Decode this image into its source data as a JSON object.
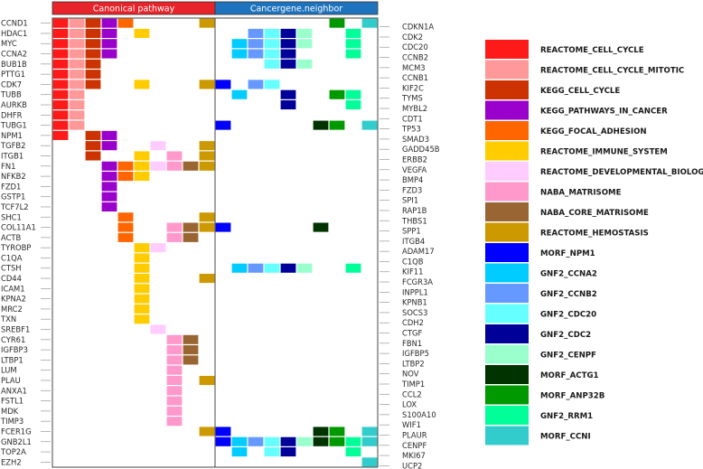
{
  "chart_data": {
    "type": "heatmap",
    "headers": [
      "Canonical pathway",
      "Cancergene.neighbor"
    ],
    "header_colors": [
      "#E8232A",
      "#1E73BE"
    ],
    "left_genes": [
      "CCND1",
      "HDAC1",
      "MYC",
      "CCNA2",
      "BUB1B",
      "PTTG1",
      "CDK7",
      "TUBB",
      "AURKB",
      "DHFR",
      "TUBG1",
      "NPM1",
      "TGFB2",
      "ITGB1",
      "FN1",
      "NFKB2",
      "FZD1",
      "GSTP1",
      "TCF7L2",
      "SHC1",
      "COL11A1",
      "ACTB",
      "TYROBP",
      "C1QA",
      "CTSH",
      "CD44",
      "ICAM1",
      "KPNA2",
      "MRC2",
      "TXN",
      "SREBF1",
      "CYR61",
      "IGFBP3",
      "LTBP1",
      "LUM",
      "PLAU",
      "ANXA1",
      "FSTL1",
      "MDK",
      "TIMP3",
      "FCER1G",
      "GNB2L1",
      "TOP2A",
      "EZH2"
    ],
    "right_genes": [
      "CDKN1A",
      "CDK2",
      "CDC20",
      "CCNB2",
      "MCM3",
      "CCNB1",
      "KIF2C",
      "TYMS",
      "MYBL2",
      "CDT1",
      "TP53",
      "SMAD3",
      "GADD45B",
      "ERBB2",
      "VEGFA",
      "BMP4",
      "FZD3",
      "SPI1",
      "RAP1B",
      "THBS1",
      "SPP1",
      "ITGB4",
      "ADAM17",
      "C1QB",
      "KIF11",
      "FCGR3A",
      "INPPL1",
      "KPNB1",
      "SOCS3",
      "CDH2",
      "CTGF",
      "FBN1",
      "IGFBP5",
      "LTBP2",
      "NOV",
      "TIMP1",
      "CCL2",
      "LOX",
      "S100A10",
      "WIF1",
      "PLAUR",
      "CENPF",
      "MKI67",
      "UCP2"
    ],
    "sets": [
      {
        "name": "REACTOME_CELL_CYCLE",
        "color": "#FF1A1A"
      },
      {
        "name": "REACTOME_CELL_CYCLE_MITOTIC",
        "color": "#FF9999"
      },
      {
        "name": "KEGG_CELL_CYCLE",
        "color": "#CC3300"
      },
      {
        "name": "KEGG_PATHWAYS_IN_CANCER",
        "color": "#9900CC"
      },
      {
        "name": "KEGG_FOCAL_ADHESION",
        "color": "#FF6600"
      },
      {
        "name": "REACTOME_IMMUNE_SYSTEM",
        "color": "#FFCC00"
      },
      {
        "name": "REACTOME_DEVELOPMENTAL_BIOLOGY",
        "color": "#FFCCFF"
      },
      {
        "name": "NABA_MATRISOME",
        "color": "#FF99CC"
      },
      {
        "name": "NABA_CORE_MATRISOME",
        "color": "#996633"
      },
      {
        "name": "REACTOME_HEMOSTASIS",
        "color": "#CC9900"
      },
      {
        "name": "MORF_NPM1",
        "color": "#0000FF"
      },
      {
        "name": "GNF2_CCNA2",
        "color": "#00CCFF"
      },
      {
        "name": "GNF2_CCNB2",
        "color": "#6699FF"
      },
      {
        "name": "GNF2_CDC20",
        "color": "#66FFFF"
      },
      {
        "name": "GNF2_CDC2",
        "color": "#000099"
      },
      {
        "name": "GNF2_CENPF",
        "color": "#99FFCC"
      },
      {
        "name": "MORF_ACTG1",
        "color": "#003300"
      },
      {
        "name": "MORF_ANP32B",
        "color": "#009900"
      },
      {
        "name": "GNF2_RRM1",
        "color": "#00FF99"
      },
      {
        "name": "MORF_CCNI",
        "color": "#33CCCC"
      }
    ],
    "cells": [
      [
        0,
        0
      ],
      [
        0,
        1
      ],
      [
        0,
        2
      ],
      [
        0,
        3
      ],
      [
        0,
        4
      ],
      [
        0,
        9
      ],
      [
        1,
        0
      ],
      [
        1,
        1
      ],
      [
        1,
        2
      ],
      [
        1,
        3
      ],
      [
        1,
        5
      ],
      [
        2,
        0
      ],
      [
        2,
        1
      ],
      [
        2,
        2
      ],
      [
        2,
        3
      ],
      [
        3,
        0
      ],
      [
        3,
        1
      ],
      [
        3,
        2
      ],
      [
        3,
        3
      ],
      [
        4,
        0
      ],
      [
        4,
        1
      ],
      [
        4,
        2
      ],
      [
        5,
        0
      ],
      [
        5,
        1
      ],
      [
        5,
        2
      ],
      [
        6,
        0
      ],
      [
        6,
        1
      ],
      [
        6,
        2
      ],
      [
        6,
        5
      ],
      [
        6,
        9
      ],
      [
        7,
        0
      ],
      [
        7,
        1
      ],
      [
        8,
        0
      ],
      [
        8,
        1
      ],
      [
        9,
        0
      ],
      [
        9,
        1
      ],
      [
        10,
        0
      ],
      [
        10,
        1
      ],
      [
        11,
        0
      ],
      [
        11,
        2
      ],
      [
        11,
        3
      ],
      [
        12,
        2
      ],
      [
        12,
        3
      ],
      [
        12,
        6
      ],
      [
        12,
        9
      ],
      [
        13,
        2
      ],
      [
        13,
        5
      ],
      [
        13,
        7
      ],
      [
        13,
        9
      ],
      [
        14,
        3
      ],
      [
        14,
        4
      ],
      [
        14,
        5
      ],
      [
        14,
        6
      ],
      [
        14,
        7
      ],
      [
        14,
        8
      ],
      [
        14,
        9
      ],
      [
        15,
        3
      ],
      [
        15,
        4
      ],
      [
        15,
        5
      ],
      [
        16,
        3
      ],
      [
        17,
        3
      ],
      [
        18,
        3
      ],
      [
        19,
        4
      ],
      [
        19,
        9
      ],
      [
        20,
        4
      ],
      [
        20,
        7
      ],
      [
        20,
        8
      ],
      [
        20,
        9
      ],
      [
        21,
        4
      ],
      [
        21,
        7
      ],
      [
        21,
        8
      ],
      [
        22,
        5
      ],
      [
        22,
        6
      ],
      [
        23,
        5
      ],
      [
        24,
        5
      ],
      [
        25,
        5
      ],
      [
        25,
        9
      ],
      [
        26,
        5
      ],
      [
        27,
        5
      ],
      [
        28,
        5
      ],
      [
        29,
        5
      ],
      [
        30,
        6
      ],
      [
        31,
        7
      ],
      [
        31,
        8
      ],
      [
        32,
        7
      ],
      [
        32,
        8
      ],
      [
        33,
        7
      ],
      [
        33,
        8
      ],
      [
        34,
        7
      ],
      [
        35,
        7
      ],
      [
        35,
        9
      ],
      [
        36,
        7
      ],
      [
        37,
        7
      ],
      [
        38,
        7
      ],
      [
        39,
        7
      ],
      [
        40,
        9
      ],
      [
        41,
        10
      ],
      [
        41,
        16
      ],
      [
        41,
        17
      ],
      [
        41,
        19
      ]
    ],
    "right_cells": [
      [
        0,
        17
      ],
      [
        0,
        19
      ],
      [
        1,
        12
      ],
      [
        1,
        13
      ],
      [
        1,
        14
      ],
      [
        1,
        15
      ],
      [
        1,
        18
      ],
      [
        2,
        11
      ],
      [
        2,
        12
      ],
      [
        2,
        13
      ],
      [
        2,
        14
      ],
      [
        2,
        15
      ],
      [
        2,
        18
      ],
      [
        3,
        11
      ],
      [
        3,
        12
      ],
      [
        3,
        13
      ],
      [
        3,
        14
      ],
      [
        3,
        18
      ],
      [
        4,
        13
      ],
      [
        4,
        14
      ],
      [
        4,
        15
      ],
      [
        6,
        10
      ],
      [
        6,
        12
      ],
      [
        6,
        13
      ],
      [
        7,
        11
      ],
      [
        7,
        14
      ],
      [
        7,
        17
      ],
      [
        7,
        18
      ],
      [
        8,
        14
      ],
      [
        8,
        18
      ],
      [
        10,
        10
      ],
      [
        10,
        16
      ],
      [
        10,
        17
      ],
      [
        10,
        19
      ],
      [
        20,
        10
      ],
      [
        20,
        16
      ],
      [
        24,
        11
      ],
      [
        24,
        12
      ],
      [
        24,
        13
      ],
      [
        24,
        14
      ],
      [
        24,
        15
      ],
      [
        24,
        18
      ],
      [
        40,
        10
      ],
      [
        40,
        16
      ],
      [
        40,
        17
      ],
      [
        40,
        19
      ],
      [
        41,
        11
      ],
      [
        41,
        12
      ],
      [
        41,
        13
      ],
      [
        41,
        14
      ],
      [
        41,
        15
      ],
      [
        41,
        18
      ],
      [
        42,
        11
      ],
      [
        42,
        13
      ],
      [
        42,
        14
      ],
      [
        42,
        18
      ],
      [
        43,
        19
      ]
    ]
  }
}
